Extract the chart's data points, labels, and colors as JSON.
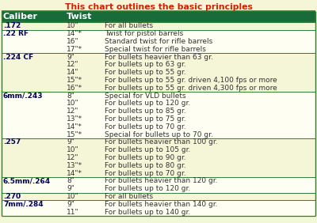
{
  "title": "This chart outlines the basic principles",
  "title_color": "#cc2200",
  "header_bg": "#1a6b3a",
  "header_text_color": "#ffffff",
  "row_bg_light": "#f5f5d8",
  "row_bg_white": "#fefef2",
  "border_color": "#2e7d32",
  "text_color": "#333333",
  "bold_text_color": "#000055",
  "columns": [
    "Caliber",
    "Twist"
  ],
  "rows": [
    [
      ".172",
      "10\"",
      "For all bullets"
    ],
    [
      ".22 RF",
      "14\"*",
      "Twist for pistol barrels"
    ],
    [
      "",
      "16\"",
      "Standard twist for rifle barrels"
    ],
    [
      "",
      "17\"*",
      "Special twist for rifle barrels"
    ],
    [
      ".224 CF",
      "9\"",
      "For bullets heavier than 63 gr."
    ],
    [
      "",
      "12\"",
      "For bullets up to 63 gr."
    ],
    [
      "",
      "14\"",
      "For bullets up to 55 gr."
    ],
    [
      "",
      "15\"*",
      "For bullets up to 55 gr. driven 4,100 fps or more"
    ],
    [
      "",
      "16\"*",
      "For bullets up to 55 gr. driven 4,300 fps or more"
    ],
    [
      "6mm/.243",
      "8\"",
      "Special for VLD bullets"
    ],
    [
      "",
      "10\"",
      "For bullets up to 120 gr."
    ],
    [
      "",
      "12\"",
      "For bullets up to 85 gr."
    ],
    [
      "",
      "13\"*",
      "For bullets up to 75 gr."
    ],
    [
      "",
      "14\"*",
      "For bullets up to 70 gr."
    ],
    [
      "",
      "15\"*",
      "Special for bullets up to 70 gr."
    ],
    [
      ".257",
      "9\"",
      "For bullets heavier than 100 gr."
    ],
    [
      "",
      "10\"",
      "For bullets up to 105 gr."
    ],
    [
      "",
      "12\"",
      "For bullets up to 90 gr."
    ],
    [
      "",
      "13\"*",
      "For bullets up to 80 gr."
    ],
    [
      "",
      "14\"*",
      "For bullets up to 70 gr."
    ],
    [
      "6.5mm/.264",
      "8\"",
      "For bullets heavier than 120 gr."
    ],
    [
      "",
      "9\"",
      "For bullets up to 120 gr."
    ],
    [
      ".270",
      "10\"",
      "For all bullets"
    ],
    [
      "7mm/.284",
      "9\"",
      "For bullets heavier than 140 gr."
    ],
    [
      "",
      "11\"",
      "For bullets up to 140 gr."
    ]
  ],
  "group_starts": [
    0,
    1,
    4,
    9,
    15,
    20,
    22,
    23
  ],
  "font_size": 6.5,
  "header_font_size": 8.0,
  "title_font_size": 7.8
}
